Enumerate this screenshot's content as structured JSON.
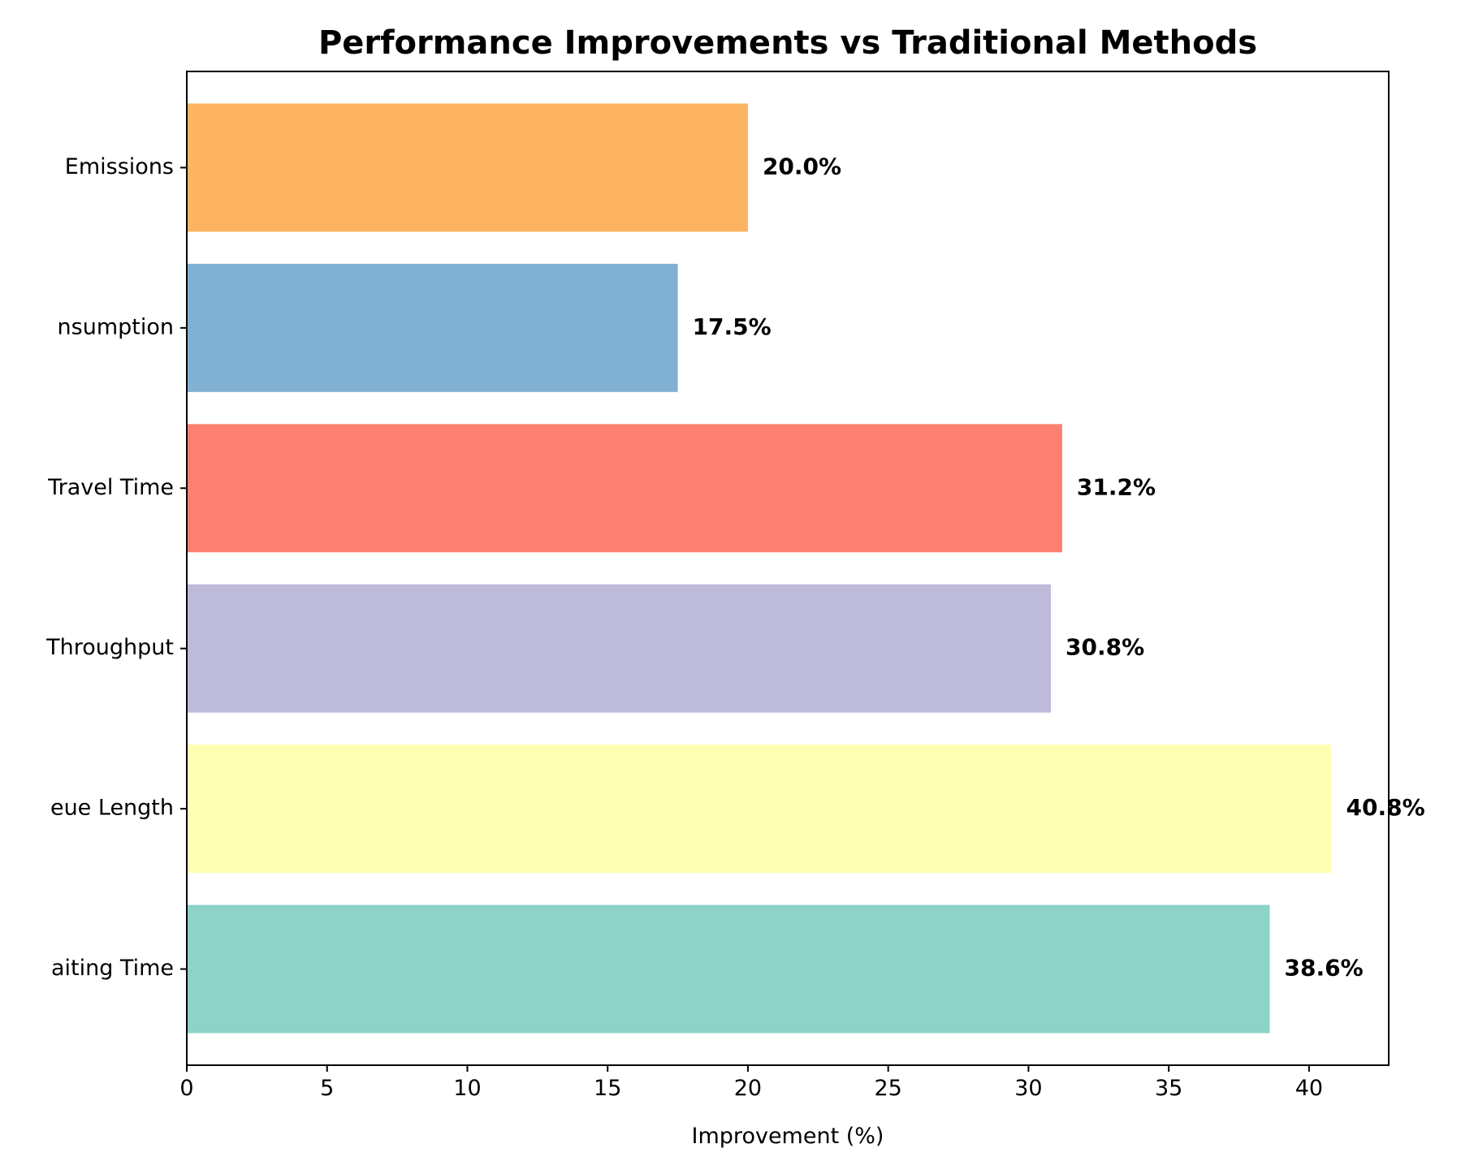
{
  "chart_data": {
    "type": "bar",
    "orientation": "horizontal",
    "title": "Performance Improvements vs Traditional Methods",
    "xlabel": "Improvement (%)",
    "ylabel": "",
    "xlim": [
      0,
      42.84
    ],
    "xticks": [
      0,
      5,
      10,
      15,
      20,
      25,
      30,
      35,
      40
    ],
    "grid": false,
    "categories": [
      "aiting Time",
      "eue Length",
      "Throughput",
      "Travel Time",
      "nsumption",
      "Emissions"
    ],
    "values": [
      38.6,
      40.8,
      30.8,
      31.2,
      17.5,
      20.0
    ],
    "value_labels": [
      "38.6%",
      "40.8%",
      "30.8%",
      "31.2%",
      "17.5%",
      "20.0%"
    ],
    "colors": [
      "#8dd3c7",
      "#ffffb3",
      "#bebada",
      "#fb8072",
      "#80b1d3",
      "#fdb462"
    ]
  }
}
